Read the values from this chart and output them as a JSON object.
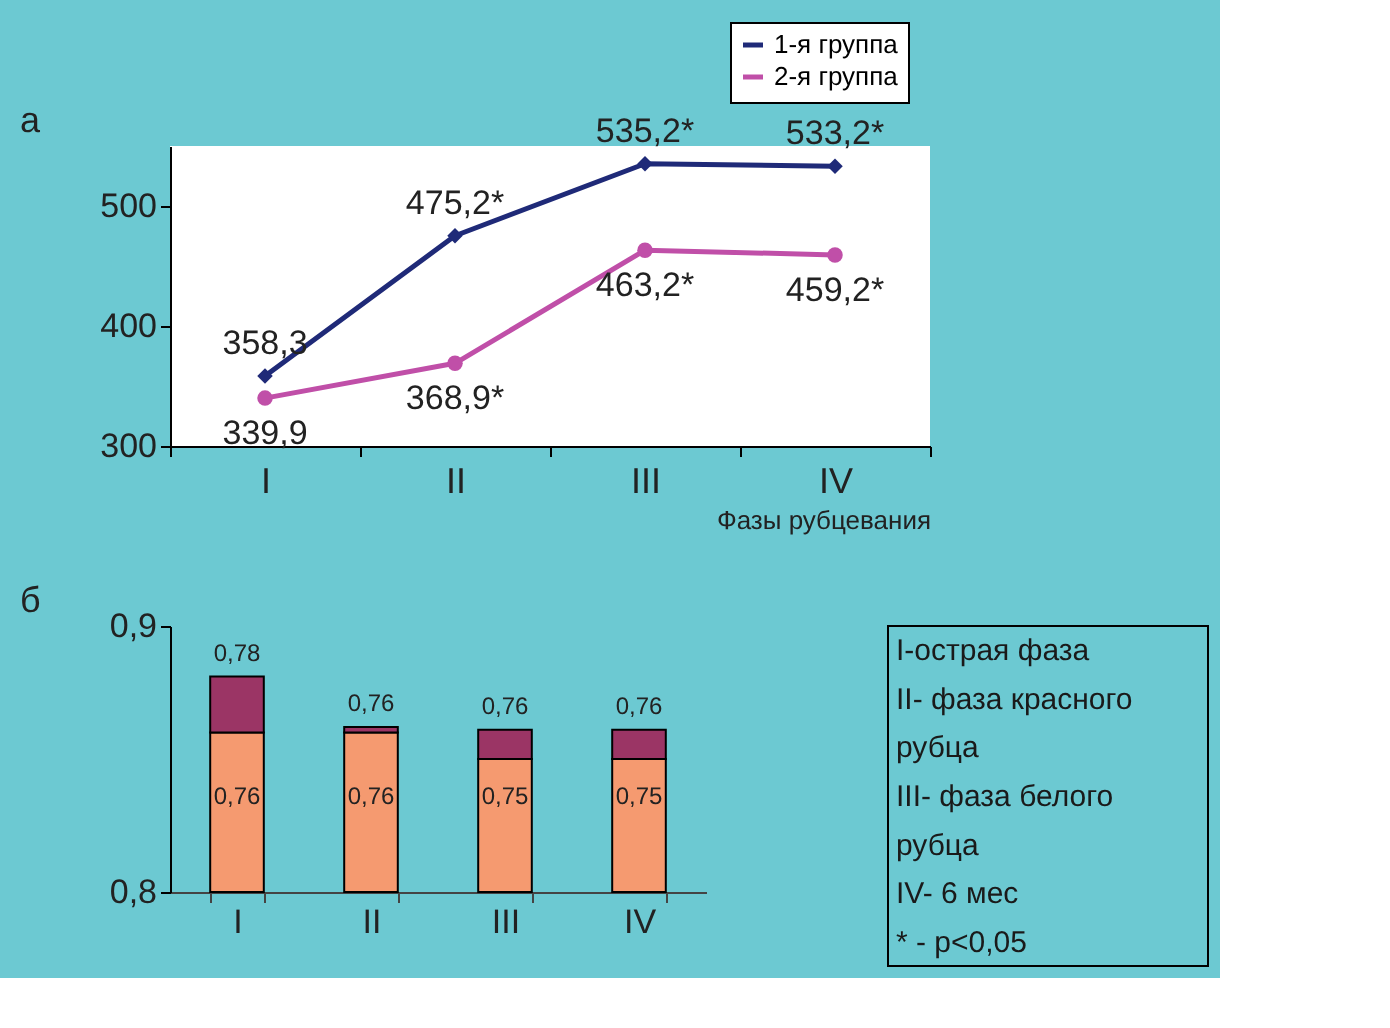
{
  "chart_data": [
    {
      "type": "line",
      "annotations": [
        "а"
      ],
      "categories": [
        "I",
        "II",
        "III",
        "IV"
      ],
      "xlabel": "Фазы рубцевания",
      "series": [
        {
          "name": "1-я группа",
          "color": "#1f2a78",
          "marker": "diamond",
          "values": [
            358.3,
            475.2,
            535.2,
            533.2
          ],
          "value_labels": [
            "358,3",
            "475,2*",
            "535,2*",
            "533,2*"
          ]
        },
        {
          "name": "2-я группа",
          "color": "#c04fa8",
          "marker": "circle",
          "values": [
            339.9,
            368.9,
            463.2,
            459.2
          ],
          "value_labels": [
            "339,9",
            "368,9*",
            "463,2*",
            "459,2*"
          ]
        }
      ],
      "ylim": [
        300,
        550
      ],
      "yticks": [
        300,
        400,
        500
      ],
      "grid": false,
      "legend": "top right"
    },
    {
      "type": "bar",
      "categories": [
        "I",
        "II",
        "III",
        "IV"
      ],
      "series": [
        {
          "color": "#f59a70",
          "base": [
            0.8,
            0.8,
            0.8,
            0.8
          ],
          "values": [
            0.06,
            0.06,
            0.05,
            0.05
          ]
        },
        {
          "color": "#9b3565",
          "base": [
            0.86,
            0.86,
            0.85,
            0.85
          ],
          "values": [
            0.021,
            0.002,
            0.011,
            0.011
          ]
        }
      ],
      "annotations": [
        "б",
        "0,76",
        "0,76",
        "0,75",
        "0,75",
        "0,78",
        "0,76",
        "0,76",
        "0,76"
      ],
      "ylim": [
        0.8,
        0.9
      ],
      "yticks": [
        {
          "value": 0.8,
          "label": "0,8"
        },
        {
          "value": 0.9,
          "label": "0,9"
        }
      ],
      "grid": false
    },
    {
      "type": "other",
      "annotations": [
        "I-острая фаза",
        "II- фаза красного рубца",
        "III- фаза белого рубца",
        "IV- 6 мес",
        "* - p<0,05"
      ]
    }
  ]
}
